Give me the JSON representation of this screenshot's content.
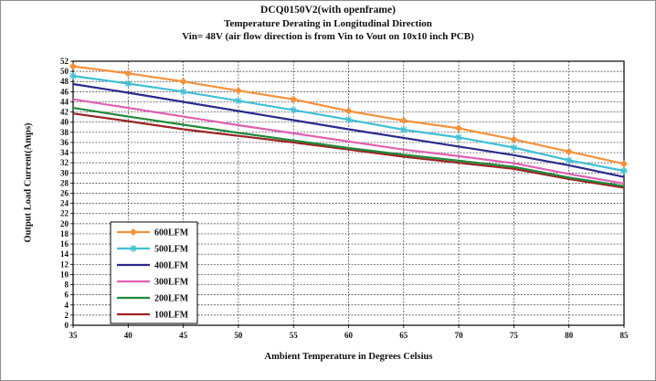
{
  "chart_data": {
    "type": "line",
    "title": "DCQ0150V2(with openframe)",
    "subtitle": "Temperature Derating in Longitudinal Direction",
    "subtitle2": "Vin= 48V (air flow direction is from Vin to Vout on 10x10 inch PCB)",
    "xlabel": "Ambient Temperature in Degrees Celsius",
    "ylabel": "Output  Load Current(Amps)",
    "x": [
      35,
      40,
      45,
      50,
      55,
      60,
      65,
      70,
      75,
      80,
      85
    ],
    "x_ticks": [
      "35",
      "40",
      "45",
      "50",
      "55",
      "60",
      "65",
      "70",
      "75",
      "80",
      "85"
    ],
    "y_ticks": [
      "0",
      "2",
      "4",
      "6",
      "8",
      "10",
      "12",
      "14",
      "16",
      "18",
      "20",
      "22",
      "24",
      "26",
      "28",
      "30",
      "32",
      "34",
      "36",
      "38",
      "40",
      "42",
      "44",
      "46",
      "48",
      "50",
      "52"
    ],
    "xlim": [
      35,
      85
    ],
    "ylim": [
      0,
      52
    ],
    "grid": true,
    "legend_position": "bottom-left",
    "series": [
      {
        "name": "600LFM",
        "color": "#f5913a",
        "marker": "diamond",
        "values": [
          51.0,
          49.6,
          48.0,
          46.2,
          44.5,
          42.2,
          40.3,
          38.8,
          36.6,
          34.2,
          31.8
        ]
      },
      {
        "name": "500LFM",
        "color": "#40c0d4",
        "marker": "star",
        "values": [
          49.1,
          47.6,
          46.0,
          44.2,
          42.4,
          40.5,
          38.5,
          37.0,
          35.0,
          32.5,
          30.4
        ]
      },
      {
        "name": "400LFM",
        "color": "#2a2a8c",
        "marker": "none",
        "values": [
          47.5,
          45.8,
          44.0,
          42.2,
          40.4,
          38.6,
          36.9,
          35.2,
          33.5,
          31.5,
          29.2
        ]
      },
      {
        "name": "300LFM",
        "color": "#e060b0",
        "marker": "none",
        "values": [
          44.5,
          42.8,
          41.1,
          39.4,
          37.8,
          36.2,
          34.6,
          33.3,
          31.9,
          29.8,
          27.9
        ]
      },
      {
        "name": "200LFM",
        "color": "#1f8a3a",
        "marker": "none",
        "values": [
          42.8,
          41.1,
          39.5,
          37.9,
          36.4,
          34.9,
          33.6,
          32.4,
          31.2,
          29.1,
          27.4
        ]
      },
      {
        "name": "100LFM",
        "color": "#9b2323",
        "marker": "none",
        "values": [
          41.7,
          40.2,
          38.6,
          37.3,
          36.0,
          34.6,
          33.2,
          32.0,
          30.8,
          28.8,
          27.1
        ]
      }
    ]
  }
}
